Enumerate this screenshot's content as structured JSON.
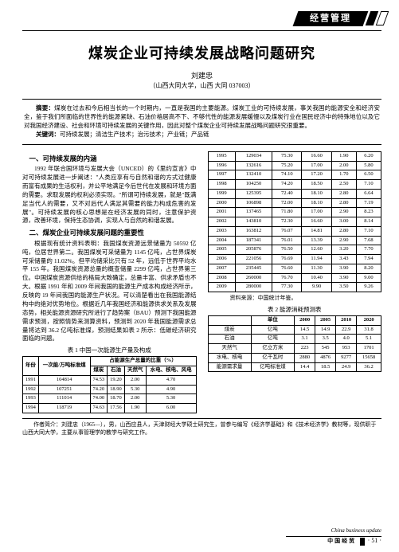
{
  "header_section": "经营管理",
  "title": "煤炭企业可持续发展战略问题研究",
  "author": "刘建忠",
  "affiliation": "（山西大同大学，山西 大同 037003）",
  "abstract_label": "摘要：",
  "abstract_text": "煤炭在过去和今后相当长的一个时期内，一直是我国的主要能源。煤炭工业的可持续发展，事关我国的能源安全和经济安全，鉴于我们所面临的世界性的能源紧缺、石油价格居高不下、不够代性的能源发展缓慢以及煤炭行业在国民经济中的特殊地位以及它对我国经济建设、社会和环境可持续发展的关键作用，因此对整个煤炭企业可持续发展战略问题研究很重要。",
  "keywords_label": "关键词：",
  "keywords_text": "可持续发展；清洁生产技术；治污技术；产业链；产品链",
  "section1_title": "一、可持续发展的内涵",
  "section1_p1": "1992 年联合国环境与发展大会（UNCED）的《里约宣言》中对可持续发展进一步阐述：\"人类应享有与自然和谐的方式过健康而富有成果的生活权利，并公平地满足今后世代在发展和环境方面的需要。求取发展的权利必须实现。\"所谓可持续发展，就是\"既满足当代人的需要，又不对后代人满足其需要的能力构成危害的发展\"。可持续发展的核心思想是在经济发展的同时，注意保护资源，改善环境，保持生态协调，实现人与自然的和谐发展。",
  "section2_title": "二、煤炭企业可持续发展问题的重要性",
  "section2_p1": "根据现有统计资料表明：我国煤炭资源远景储量为 50592 亿吨，位居世界第二。我国煤炭可采储量为 1145 亿吨，占世界煤炭可采储量的 11.02%。但平均储采比只有 52 年，远低于世界平均水平 155 年。我国煤炭资源总量的概查储量 2299 亿吨，占世界第三位。中国煤炭资源供给的格局大致确定，总量丰富、供求矛盾也不大。根据 1991 年和 2009 年间我国的能源生产成本构成经济所示，反映的 19 年间我国的能源生产状况。可以清楚看出在我国能源结构中的绝对优势地位。根据近几年我国经济和能源供求关系及发展态势，相关能源资源研究所进行了趋势案（BAU）预测下我国能源需求预测，按照情势来测算资料，预测到 2020 年我国能源需求总量将达到 36.2 亿吨标准煤，预测结果如表 2 所示：低碳经济研究面临的问题。",
  "table1_title": "表 1 中国一次能源生产量及构成",
  "table1": {
    "columns": [
      "年份",
      "一次能/万吨标准煤",
      "占能源生产总量的比重（%） 煤炭",
      "石油",
      "天然气",
      "水电、核电、风电"
    ],
    "rows": [
      [
        "1991",
        "104814",
        "74.53",
        "19.20",
        "2.00",
        "4.70"
      ],
      [
        "1992",
        "107251",
        "74.20",
        "18.90",
        "5.30",
        "4.90"
      ],
      [
        "1993",
        "111014",
        "74.00",
        "18.70",
        "2.00",
        "5.30"
      ],
      [
        "1994",
        "118719",
        "74.63",
        "17.56",
        "1.90",
        "6.00"
      ]
    ]
  },
  "table1b": {
    "rows": [
      [
        "1995",
        "129034",
        "75.30",
        "16.60",
        "1.90",
        "6.20"
      ],
      [
        "1996",
        "132616",
        "75.20",
        "17.00",
        "2.00",
        "5.80"
      ],
      [
        "1997",
        "132410",
        "74.10",
        "17.20",
        "1.70",
        "6.50"
      ],
      [
        "1998",
        "104250",
        "74.20",
        "18.50",
        "2.50",
        "7.10"
      ],
      [
        "1999",
        "125395",
        "72.40",
        "18.10",
        "2.80",
        "6.64"
      ],
      [
        "2000",
        "106898",
        "72.00",
        "18.10",
        "2.80",
        "7.19"
      ],
      [
        "2001",
        "137465",
        "71.80",
        "17.00",
        "2.90",
        "8.23"
      ],
      [
        "2002",
        "143810",
        "72.30",
        "16.60",
        "3.00",
        "8.14"
      ],
      [
        "2003",
        "163812",
        "76.07",
        "14.81",
        "2.80",
        "7.10"
      ],
      [
        "2004",
        "187341",
        "76.01",
        "13.39",
        "2.90",
        "7.68"
      ],
      [
        "2005",
        "205876",
        "76.50",
        "12.60",
        "3.20",
        "7.70"
      ],
      [
        "2006",
        "221056",
        "76.69",
        "11.94",
        "3.43",
        "7.94"
      ],
      [
        "2007",
        "235445",
        "76.60",
        "11.30",
        "3.90",
        "8.20"
      ],
      [
        "2008",
        "260000",
        "76.70",
        "10.40",
        "3.90",
        "9.00"
      ],
      [
        "2009",
        "280000",
        "77.30",
        "9.90",
        "3.50",
        "9.26"
      ]
    ]
  },
  "source_line": "资料来源：中国统计年鉴。",
  "table2_title": "表 2 能源消耗预测表",
  "table2": {
    "columns": [
      "",
      "单位",
      "2000",
      "2005",
      "2010",
      "2020"
    ],
    "rows": [
      [
        "煤炭",
        "亿吨",
        "14.5",
        "14.9",
        "22.9",
        "31.8"
      ],
      [
        "石油",
        "亿吨",
        "3.1",
        "3.5",
        "4.0",
        "5.1"
      ],
      [
        "天然气",
        "亿立方米",
        "223",
        "545",
        "953",
        "1701"
      ],
      [
        "水电、核电",
        "亿千瓦时",
        "2880",
        "4876",
        "9277",
        "15658"
      ],
      [
        "能源需求量",
        "亿吨标准煤",
        "14.4",
        "18.5",
        "24.9",
        "36.2"
      ]
    ]
  },
  "author_note": "作者简介：刘建忠（1965—），男，山西应县人，天津财经大学硕士研究生，曾参与编写《经济学基础》和《技术经济学》教材等，现供职于山西大同大学，主要从事管理学的教学与研究工作。",
  "footer_eng": "China business update",
  "footer_cn": "中国经贸",
  "page_no": "· 51 ·"
}
